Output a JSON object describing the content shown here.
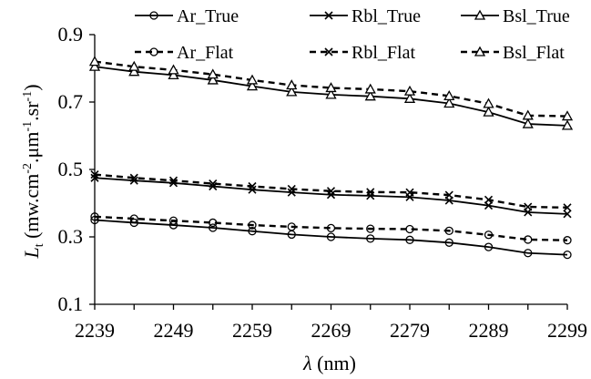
{
  "chart_data": {
    "type": "line",
    "title": "",
    "xlabel": {
      "symbol": "λ",
      "unit": " (nm)"
    },
    "ylabel": {
      "symbol": "L",
      "symbol_sub": "t",
      "parts": [
        {
          "t": " (mw.cm",
          "sup": false
        },
        {
          "t": "-2",
          "sup": true
        },
        {
          "t": ".μm",
          "sup": false
        },
        {
          "t": "-1",
          "sup": true
        },
        {
          "t": ".sr",
          "sup": false
        },
        {
          "t": "-1",
          "sup": true
        },
        {
          "t": ")",
          "sup": false
        }
      ]
    },
    "xlim": [
      2239,
      2299
    ],
    "ylim": [
      0.1,
      0.9
    ],
    "x_ticks": [
      "2239",
      "2249",
      "2259",
      "2269",
      "2279",
      "2289",
      "2299"
    ],
    "x_tick_values": [
      2239,
      2249,
      2259,
      2269,
      2279,
      2289,
      2299
    ],
    "y_ticks": [
      "0.1",
      "0.3",
      "0.5",
      "0.7",
      "0.9"
    ],
    "y_tick_values": [
      0.1,
      0.3,
      0.5,
      0.7,
      0.9
    ],
    "grid": false,
    "legend_position": "top",
    "x": [
      2239,
      2244,
      2249,
      2254,
      2259,
      2264,
      2269,
      2274,
      2279,
      2284,
      2289,
      2294,
      2299
    ],
    "series": [
      {
        "name": "Ar_True",
        "marker": "circle",
        "dash": false,
        "values": [
          0.35,
          0.342,
          0.335,
          0.327,
          0.317,
          0.307,
          0.3,
          0.295,
          0.291,
          0.283,
          0.27,
          0.252,
          0.247
        ]
      },
      {
        "name": "Rbl_True",
        "marker": "x",
        "dash": false,
        "values": [
          0.475,
          0.467,
          0.46,
          0.45,
          0.44,
          0.432,
          0.425,
          0.422,
          0.418,
          0.408,
          0.393,
          0.373,
          0.368
        ]
      },
      {
        "name": "Bsl_True",
        "marker": "triangle",
        "dash": false,
        "values": [
          0.805,
          0.79,
          0.78,
          0.765,
          0.747,
          0.73,
          0.722,
          0.717,
          0.71,
          0.696,
          0.67,
          0.635,
          0.63
        ]
      },
      {
        "name": "Ar_Flat",
        "marker": "circle",
        "dash": true,
        "values": [
          0.36,
          0.354,
          0.348,
          0.342,
          0.335,
          0.33,
          0.326,
          0.324,
          0.323,
          0.318,
          0.306,
          0.292,
          0.29
        ]
      },
      {
        "name": "Rbl_Flat",
        "marker": "x",
        "dash": true,
        "values": [
          0.485,
          0.475,
          0.467,
          0.458,
          0.45,
          0.442,
          0.436,
          0.433,
          0.432,
          0.424,
          0.41,
          0.389,
          0.387
        ]
      },
      {
        "name": "Bsl_Flat",
        "marker": "triangle",
        "dash": true,
        "values": [
          0.82,
          0.805,
          0.795,
          0.782,
          0.765,
          0.75,
          0.742,
          0.738,
          0.732,
          0.718,
          0.695,
          0.66,
          0.658
        ]
      }
    ]
  }
}
